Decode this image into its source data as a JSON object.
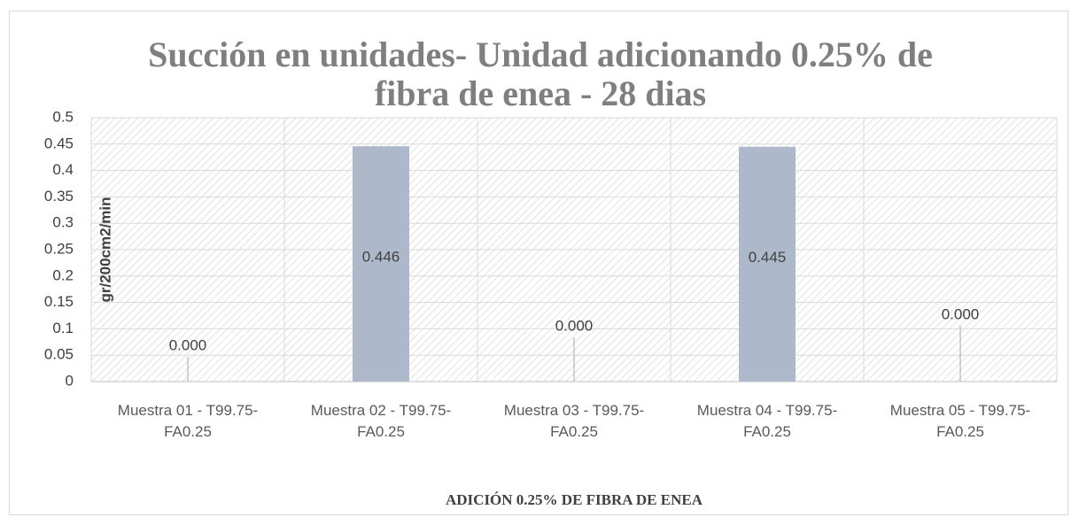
{
  "chart_data": {
    "type": "bar",
    "title": "Succión en unidades- Unidad adicionando 0.25% de fibra de enea - 28 dias",
    "x_label": "ADICIÓN 0.25% DE FIBRA DE ENEA",
    "y_label": "gr/200cm2/min",
    "categories": [
      "Muestra 01 - T99.75-FA0.25",
      "Muestra 02 - T99.75-FA0.25",
      "Muestra 03 - T99.75-FA0.25",
      "Muestra 04 - T99.75-FA0.25",
      "Muestra 05 - T99.75-FA0.25"
    ],
    "values": [
      0,
      0.446,
      0,
      0.445,
      0
    ],
    "value_labels": [
      "0.000",
      "0.446",
      "0.000",
      "0.445",
      "0.000"
    ],
    "color": "#adb9ca",
    "ylim": [
      0,
      0.5
    ],
    "yticks": [
      0,
      0.05,
      0.1,
      0.15,
      0.2,
      0.25,
      0.3,
      0.35,
      0.4,
      0.45,
      0.5
    ],
    "grid": true
  }
}
